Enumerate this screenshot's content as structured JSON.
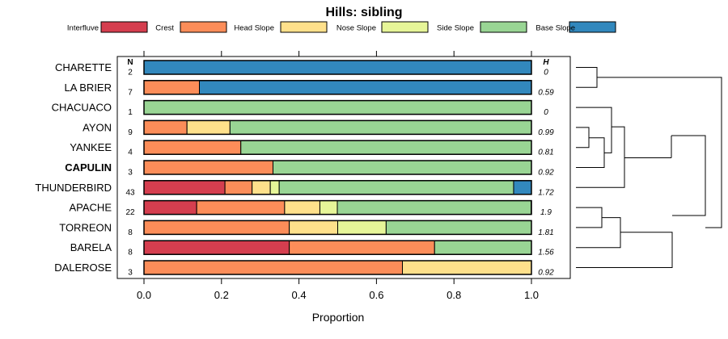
{
  "chart_data": {
    "type": "bar",
    "title": "Hills: sibling",
    "xlabel": "Proportion",
    "ylabel": "",
    "xlim": [
      0,
      1
    ],
    "xticks": [
      "0.0",
      "0.2",
      "0.4",
      "0.6",
      "0.8",
      "1.0"
    ],
    "legend": {
      "placement": "top",
      "entries": [
        {
          "name": "Interfluve",
          "color": "#d53e4f"
        },
        {
          "name": "Crest",
          "color": "#fc8d59"
        },
        {
          "name": "Head Slope",
          "color": "#fee08b"
        },
        {
          "name": "Nose Slope",
          "color": "#e6f598"
        },
        {
          "name": "Side Slope",
          "color": "#99d594"
        },
        {
          "name": "Base Slope",
          "color": "#3288bd"
        }
      ]
    },
    "n_header": "N",
    "h_header": "H",
    "rows": [
      {
        "label": "CHARETTE",
        "bold": false,
        "n": "2",
        "h": "0",
        "values": [
          0,
          0,
          0,
          0,
          0,
          1
        ]
      },
      {
        "label": "LA BRIER",
        "bold": false,
        "n": "7",
        "h": "0.59",
        "values": [
          0,
          0.143,
          0,
          0,
          0,
          0.857
        ]
      },
      {
        "label": "CHACUACO",
        "bold": false,
        "n": "1",
        "h": "0",
        "values": [
          0,
          0,
          0,
          0,
          1,
          0
        ]
      },
      {
        "label": "AYON",
        "bold": false,
        "n": "9",
        "h": "0.99",
        "values": [
          0,
          0.111,
          0.111,
          0,
          0.778,
          0
        ]
      },
      {
        "label": "YANKEE",
        "bold": false,
        "n": "4",
        "h": "0.81",
        "values": [
          0,
          0.25,
          0,
          0,
          0.75,
          0
        ]
      },
      {
        "label": "CAPULIN",
        "bold": true,
        "n": "3",
        "h": "0.92",
        "values": [
          0,
          0.333,
          0,
          0,
          0.667,
          0
        ]
      },
      {
        "label": "THUNDERBIRD",
        "bold": false,
        "n": "43",
        "h": "1.72",
        "values": [
          0.209,
          0.07,
          0.047,
          0.023,
          0.605,
          0.046
        ]
      },
      {
        "label": "APACHE",
        "bold": false,
        "n": "22",
        "h": "1.9",
        "values": [
          0.136,
          0.227,
          0.091,
          0.045,
          0.5,
          0
        ]
      },
      {
        "label": "TORREON",
        "bold": false,
        "n": "8",
        "h": "1.81",
        "values": [
          0,
          0.375,
          0.125,
          0.125,
          0.375,
          0
        ]
      },
      {
        "label": "BARELA",
        "bold": false,
        "n": "8",
        "h": "1.56",
        "values": [
          0.375,
          0.375,
          0,
          0,
          0.25,
          0
        ]
      },
      {
        "label": "DALEROSE",
        "bold": false,
        "n": "3",
        "h": "0.92",
        "values": [
          0,
          0.667,
          0.333,
          0,
          0,
          0
        ]
      }
    ]
  }
}
